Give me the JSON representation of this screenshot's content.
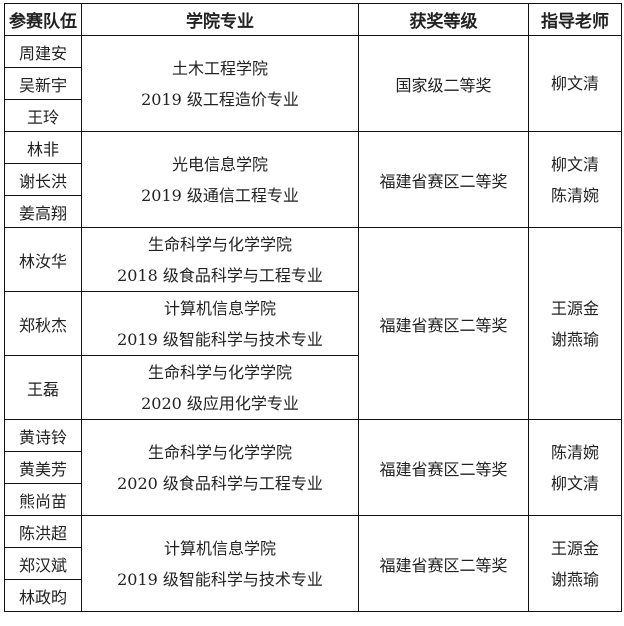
{
  "headers": [
    "参赛队伍",
    "学院专业",
    "获奖等级",
    "指导老师"
  ],
  "groups": [
    {
      "members": [
        "周建安",
        "吴新宇",
        "王玲"
      ],
      "college": "土木工程学院",
      "major": "2019 级工程造价专业",
      "award": "国家级二等奖",
      "teachers": [
        "柳文清"
      ]
    },
    {
      "members": [
        "林非",
        "谢长洪",
        "姜高翔"
      ],
      "college": "光电信息学院",
      "major": "2019 级通信工程专业",
      "award": "福建省赛区二等奖",
      "teachers": [
        "柳文清",
        "陈清婉"
      ]
    },
    {
      "members": [
        "林汝华",
        "郑秋杰",
        "王磊"
      ],
      "subs": [
        {
          "college": "生命科学与化学学院",
          "major": "2018 级食品科学与工程专业"
        },
        {
          "college": "计算机信息学院",
          "major": "2019 级智能科学与技术专业"
        },
        {
          "college": "生命科学与化学学院",
          "major": "2020 级应用化学专业"
        }
      ],
      "award": "福建省赛区二等奖",
      "teachers": [
        "王源金",
        "谢燕瑜"
      ]
    },
    {
      "members": [
        "黄诗铃",
        "黄美芳",
        "熊尚苗"
      ],
      "college": "生命科学与化学学院",
      "major": "2020 级食品科学与工程专业",
      "award": "福建省赛区二等奖",
      "teachers": [
        "陈清婉",
        "柳文清"
      ]
    },
    {
      "members": [
        "陈洪超",
        "郑汉斌",
        "林政昀"
      ],
      "college": "计算机信息学院",
      "major": "2019 级智能科学与技术专业",
      "award": "福建省赛区二等奖",
      "teachers": [
        "王源金",
        "谢燕瑜"
      ]
    }
  ]
}
